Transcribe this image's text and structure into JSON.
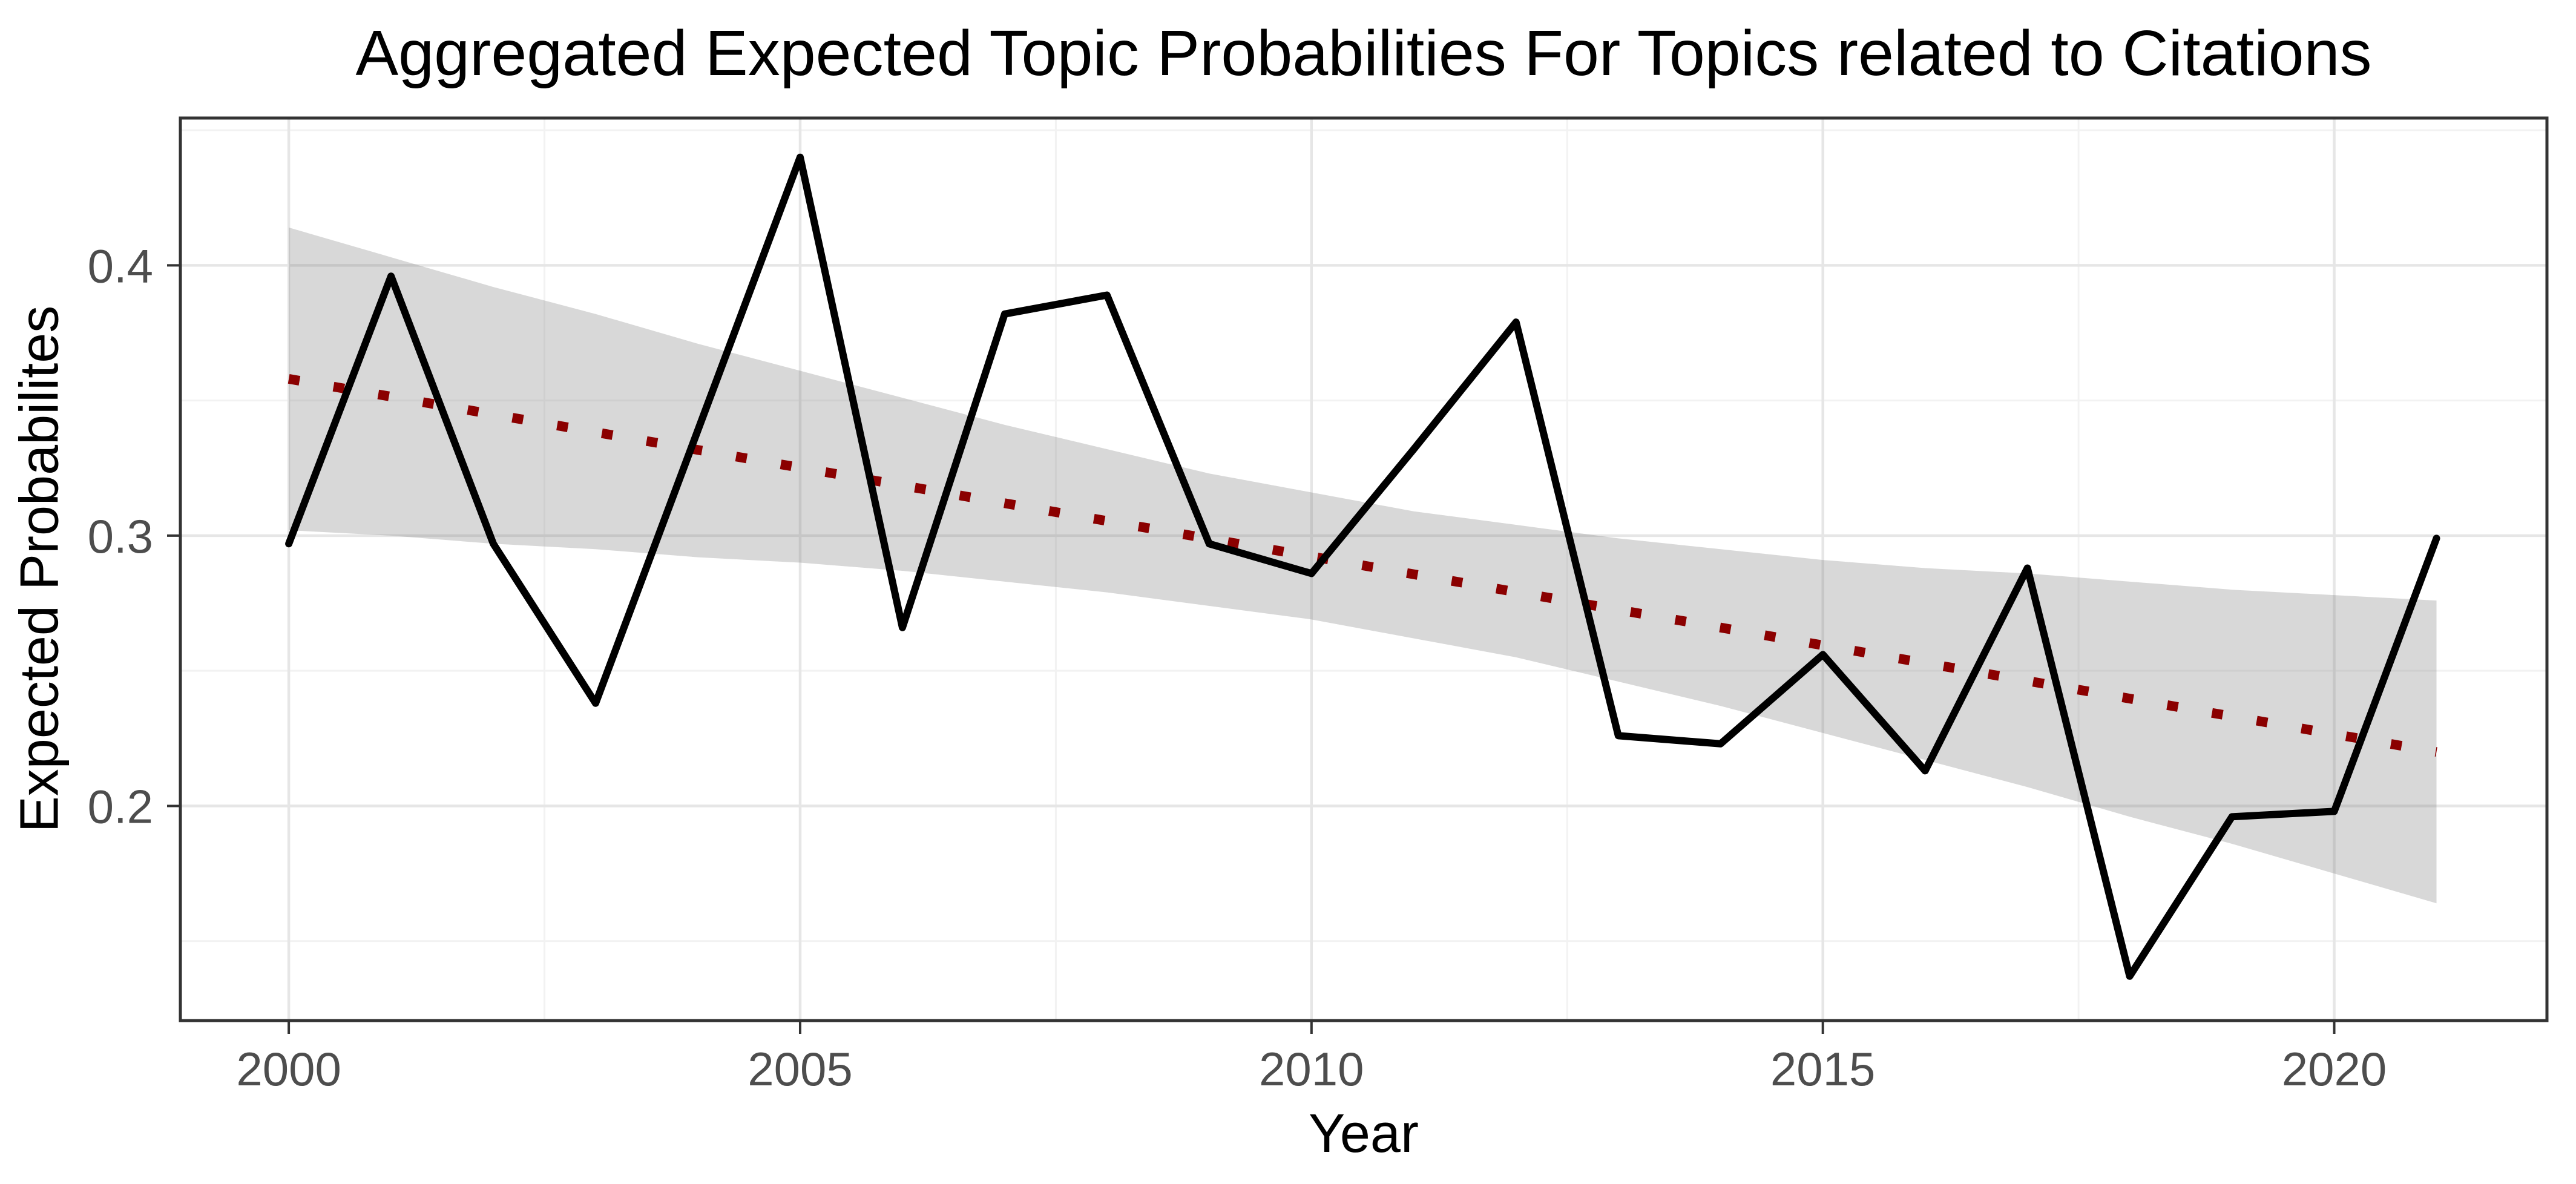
{
  "title": "Aggregated Expected Topic Probabilities For Topics related to Citations",
  "chart_data": {
    "type": "line",
    "title": "Aggregated Expected Topic Probabilities For Topics related to Citations",
    "xlabel": "Year",
    "ylabel": "Expected Probabilites",
    "xlim": [
      1998.94,
      2022.08
    ],
    "ylim": [
      0.1206,
      0.4545
    ],
    "x_ticks": [
      2000,
      2005,
      2010,
      2015,
      2020
    ],
    "x_minor_ticks": [
      2002.5,
      2007.5,
      2012.5,
      2017.5
    ],
    "y_ticks": [
      0.2,
      0.3,
      0.4
    ],
    "y_tick_labels": [
      "0.2",
      "0.3",
      "0.4"
    ],
    "y_minor_ticks": [
      0.15,
      0.25,
      0.35,
      0.45
    ],
    "grid": "on",
    "legend": "none",
    "x": [
      2000,
      2001,
      2002,
      2003,
      2004,
      2005,
      2006,
      2007,
      2008,
      2009,
      2010,
      2011,
      2012,
      2013,
      2014,
      2015,
      2016,
      2017,
      2018,
      2019,
      2020,
      2021
    ],
    "series": [
      {
        "name": "observed-expected-probability",
        "style": "solid",
        "color": "#000000",
        "values": [
          0.297,
          0.396,
          0.297,
          0.238,
          0.339,
          0.44,
          0.266,
          0.382,
          0.389,
          0.297,
          0.286,
          0.332,
          0.379,
          0.226,
          0.223,
          0.256,
          0.213,
          0.288,
          0.137,
          0.196,
          0.198,
          0.299
        ]
      },
      {
        "name": "linear-trend",
        "style": "dotted",
        "color": "#8B0000",
        "x": [
          2000,
          2021
        ],
        "values": [
          0.358,
          0.22
        ]
      }
    ],
    "confidence_band": {
      "color": "rgba(125,125,125,0.30)",
      "upper": [
        0.414,
        0.403,
        0.392,
        0.382,
        0.371,
        0.361,
        0.351,
        0.341,
        0.332,
        0.323,
        0.316,
        0.309,
        0.304,
        0.299,
        0.295,
        0.291,
        0.288,
        0.286,
        0.283,
        0.28,
        0.278,
        0.276
      ],
      "lower": [
        0.302,
        0.3,
        0.297,
        0.295,
        0.292,
        0.29,
        0.287,
        0.283,
        0.279,
        0.274,
        0.269,
        0.262,
        0.255,
        0.246,
        0.237,
        0.227,
        0.217,
        0.207,
        0.196,
        0.186,
        0.175,
        0.164
      ]
    },
    "colors": {
      "data_line": "#000000",
      "trend_line": "#8B0000",
      "band_fill": "rgba(125,125,125,0.30)",
      "grid_major": "#E6E6E6",
      "grid_minor": "#F2F2F2",
      "panel_border": "#333333",
      "tick_mark": "#333333",
      "tick_label": "#4D4D4D",
      "background": "#FFFFFF"
    }
  }
}
